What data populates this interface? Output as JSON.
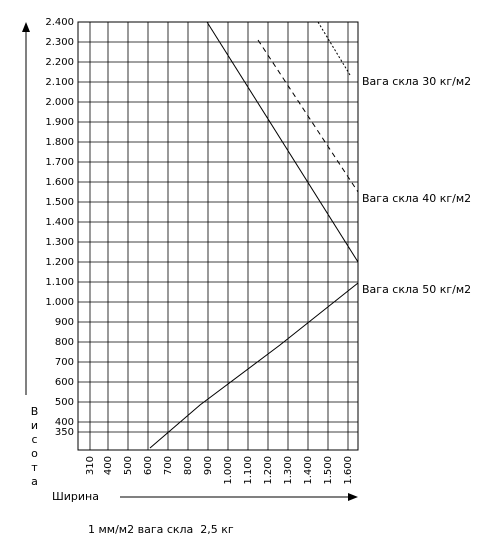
{
  "chart_data": {
    "type": "line",
    "x_label": "Ширина",
    "y_label": "Висота",
    "note": "1 мм/м2 вага скла  2,5 кг",
    "xlim": [
      250,
      1650
    ],
    "ylim": [
      260,
      2400
    ],
    "xticks": [
      310,
      400,
      500,
      600,
      700,
      800,
      900,
      {
        "value": 1000,
        "label": "1.000"
      },
      {
        "value": 1100,
        "label": "1.100"
      },
      {
        "value": 1200,
        "label": "1.200"
      },
      {
        "value": 1300,
        "label": "1.300"
      },
      {
        "value": 1400,
        "label": "1.400"
      },
      {
        "value": 1500,
        "label": "1.500"
      },
      {
        "value": 1600,
        "label": "1.600"
      }
    ],
    "yticks": [
      350,
      400,
      500,
      600,
      700,
      800,
      900,
      {
        "value": 1000,
        "label": "1.000"
      },
      {
        "value": 1100,
        "label": "1.100"
      },
      {
        "value": 1200,
        "label": "1.200"
      },
      {
        "value": 1300,
        "label": "1.300"
      },
      {
        "value": 1400,
        "label": "1.400"
      },
      {
        "value": 1500,
        "label": "1.500"
      },
      {
        "value": 1600,
        "label": "1.600"
      },
      {
        "value": 1700,
        "label": "1.700"
      },
      {
        "value": 1800,
        "label": "1.800"
      },
      {
        "value": 1900,
        "label": "1.900"
      },
      {
        "value": 2000,
        "label": "2.000"
      },
      {
        "value": 2100,
        "label": "2.100"
      },
      {
        "value": 2200,
        "label": "2.200"
      },
      {
        "value": 2300,
        "label": "2.300"
      },
      {
        "value": 2400,
        "label": "2.400"
      }
    ],
    "grid": true,
    "series": [
      {
        "name": "Вага скла 30 кг/м2",
        "color": "#000000",
        "dash": "2,2",
        "x": [
          1450,
          1610
        ],
        "values": [
          2400,
          2135
        ]
      },
      {
        "name": "Вага скла 40 кг/м2",
        "color": "#000000",
        "dash": "5,4",
        "x": [
          1150,
          1650
        ],
        "values": [
          2310,
          1550
        ]
      },
      {
        "color": "#000000",
        "x": [
          895,
          1650
        ],
        "values": [
          2400,
          1200
        ]
      },
      {
        "name": "Вага скла 50 кг/м2",
        "color": "#000000",
        "x": [
          610,
          860,
          1260,
          1650
        ],
        "values": [
          270,
          485,
          785,
          1095
        ]
      }
    ]
  }
}
